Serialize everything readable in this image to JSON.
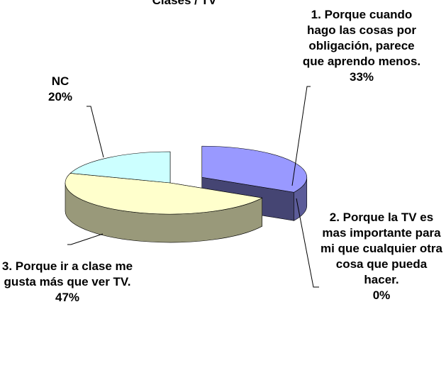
{
  "chart_data": {
    "type": "pie3d",
    "title": "Clases / TV",
    "categories": [
      "1. Porque cuando hago las cosas por obligación, parece que aprendo menos.",
      "2. Porque la TV es mas importante para mi que cualquier otra cosa que pueda hacer.",
      "3. Porque ir a clase me gusta más que ver TV.",
      "NC"
    ],
    "values": [
      33,
      0,
      47,
      20
    ],
    "value_labels": [
      "33%",
      "0%",
      "47%",
      "20%"
    ],
    "colors": [
      "#9999ff",
      "#993366",
      "#ffffcc",
      "#ccffff"
    ]
  }
}
